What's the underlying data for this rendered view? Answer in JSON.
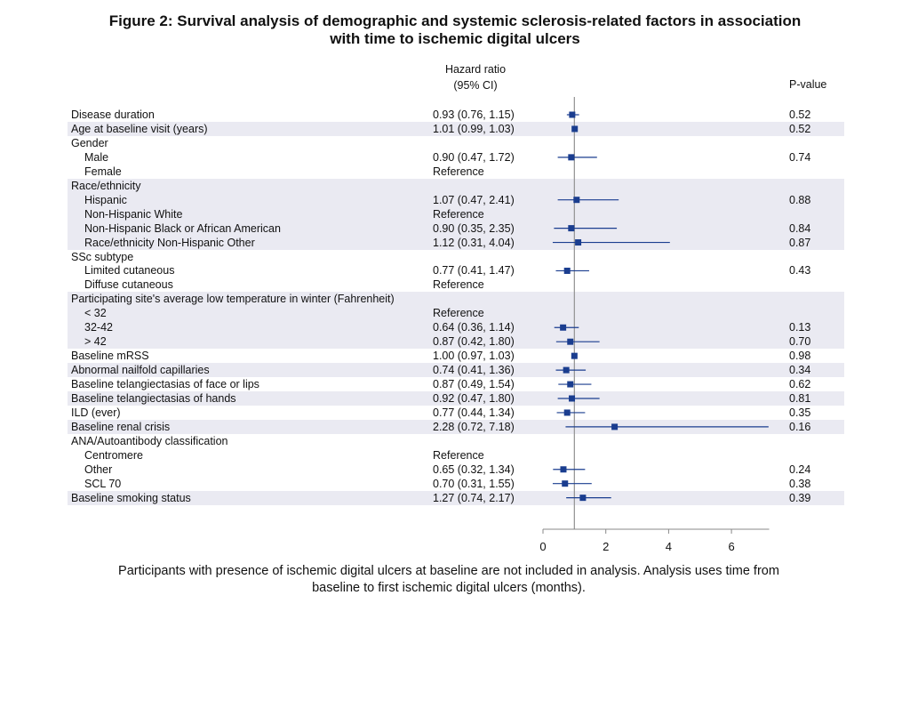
{
  "title": {
    "line1": "Figure 2: Survival analysis of demographic and systemic sclerosis-related factors in association",
    "line2": "with time to ischemic digital ulcers"
  },
  "headers": {
    "hazard_ratio_line1": "Hazard ratio",
    "hazard_ratio_line2": "(95% CI)",
    "p_value": "P-value"
  },
  "footnote": {
    "line1": "Participants with presence of ischemic digital ulcers at baseline are not included in analysis. Analysis uses time from",
    "line2": "baseline to first ischemic digital ulcers (months)."
  },
  "colors": {
    "marker": "#1a3d8f",
    "band": "#eaeaf2",
    "axis": "#888888",
    "refline": "#999999"
  },
  "chart_data": {
    "type": "forest",
    "xlim": [
      0,
      7.2
    ],
    "x_ticks": [
      0,
      2,
      4,
      6
    ],
    "reference_line": 1,
    "rows": [
      {
        "label": "Disease duration",
        "indent": false,
        "hr_text": "0.93 (0.76, 1.15)",
        "p": "0.52",
        "est": 0.93,
        "lo": 0.76,
        "hi": 1.15
      },
      {
        "label": "Age at baseline visit (years)",
        "indent": false,
        "hr_text": "1.01 (0.99, 1.03)",
        "p": "0.52",
        "est": 1.01,
        "lo": 0.99,
        "hi": 1.03
      },
      {
        "label": "Gender",
        "indent": false,
        "hr_text": "",
        "p": ""
      },
      {
        "label": "Male",
        "indent": true,
        "hr_text": "0.90 (0.47, 1.72)",
        "p": "0.74",
        "est": 0.9,
        "lo": 0.47,
        "hi": 1.72
      },
      {
        "label": "Female",
        "indent": true,
        "hr_text": "Reference",
        "p": ""
      },
      {
        "label": "Race/ethnicity",
        "indent": false,
        "hr_text": "",
        "p": ""
      },
      {
        "label": "Hispanic",
        "indent": true,
        "hr_text": "1.07 (0.47, 2.41)",
        "p": "0.88",
        "est": 1.07,
        "lo": 0.47,
        "hi": 2.41
      },
      {
        "label": "Non-Hispanic White",
        "indent": true,
        "hr_text": "Reference",
        "p": ""
      },
      {
        "label": "Non-Hispanic Black or African American",
        "indent": true,
        "hr_text": "0.90 (0.35, 2.35)",
        "p": "0.84",
        "est": 0.9,
        "lo": 0.35,
        "hi": 2.35
      },
      {
        "label": "Race/ethnicity Non-Hispanic Other",
        "indent": true,
        "hr_text": "1.12 (0.31, 4.04)",
        "p": "0.87",
        "est": 1.12,
        "lo": 0.31,
        "hi": 4.04
      },
      {
        "label": "SSc subtype",
        "indent": false,
        "hr_text": "",
        "p": ""
      },
      {
        "label": "Limited cutaneous",
        "indent": true,
        "hr_text": "0.77 (0.41, 1.47)",
        "p": "0.43",
        "est": 0.77,
        "lo": 0.41,
        "hi": 1.47
      },
      {
        "label": "Diffuse cutaneous",
        "indent": true,
        "hr_text": "Reference",
        "p": ""
      },
      {
        "label": "Participating site's average low temperature in winter (Fahrenheit)",
        "indent": false,
        "hr_text": "",
        "p": ""
      },
      {
        "label": "< 32",
        "indent": true,
        "hr_text": "Reference",
        "p": ""
      },
      {
        "label": "32-42",
        "indent": true,
        "hr_text": "0.64 (0.36, 1.14)",
        "p": "0.13",
        "est": 0.64,
        "lo": 0.36,
        "hi": 1.14
      },
      {
        "label": "> 42",
        "indent": true,
        "hr_text": "0.87 (0.42, 1.80)",
        "p": "0.70",
        "est": 0.87,
        "lo": 0.42,
        "hi": 1.8
      },
      {
        "label": "Baseline mRSS",
        "indent": false,
        "hr_text": "1.00 (0.97, 1.03)",
        "p": "0.98",
        "est": 1.0,
        "lo": 0.97,
        "hi": 1.03
      },
      {
        "label": "Abnormal nailfold capillaries",
        "indent": false,
        "hr_text": "0.74 (0.41, 1.36)",
        "p": "0.34",
        "est": 0.74,
        "lo": 0.41,
        "hi": 1.36
      },
      {
        "label": "Baseline telangiectasias of face or lips",
        "indent": false,
        "hr_text": "0.87 (0.49, 1.54)",
        "p": "0.62",
        "est": 0.87,
        "lo": 0.49,
        "hi": 1.54
      },
      {
        "label": "Baseline telangiectasias of hands",
        "indent": false,
        "hr_text": "0.92 (0.47, 1.80)",
        "p": "0.81",
        "est": 0.92,
        "lo": 0.47,
        "hi": 1.8
      },
      {
        "label": "ILD (ever)",
        "indent": false,
        "hr_text": "0.77 (0.44, 1.34)",
        "p": "0.35",
        "est": 0.77,
        "lo": 0.44,
        "hi": 1.34
      },
      {
        "label": "Baseline renal crisis",
        "indent": false,
        "hr_text": "2.28 (0.72, 7.18)",
        "p": "0.16",
        "est": 2.28,
        "lo": 0.72,
        "hi": 7.18
      },
      {
        "label": "ANA/Autoantibody classification",
        "indent": false,
        "hr_text": "",
        "p": ""
      },
      {
        "label": "Centromere",
        "indent": true,
        "hr_text": "Reference",
        "p": ""
      },
      {
        "label": "Other",
        "indent": true,
        "hr_text": "0.65 (0.32, 1.34)",
        "p": "0.24",
        "est": 0.65,
        "lo": 0.32,
        "hi": 1.34
      },
      {
        "label": "SCL 70",
        "indent": true,
        "hr_text": "0.70 (0.31, 1.55)",
        "p": "0.38",
        "est": 0.7,
        "lo": 0.31,
        "hi": 1.55
      },
      {
        "label": "Baseline smoking status",
        "indent": false,
        "hr_text": "1.27 (0.74, 2.17)",
        "p": "0.39",
        "est": 1.27,
        "lo": 0.74,
        "hi": 2.17
      }
    ],
    "bands": [
      {
        "start": 1,
        "end": 1
      },
      {
        "start": 5,
        "end": 9
      },
      {
        "start": 13,
        "end": 16
      },
      {
        "start": 18,
        "end": 18
      },
      {
        "start": 20,
        "end": 20
      },
      {
        "start": 22,
        "end": 22
      },
      {
        "start": 27,
        "end": 27
      }
    ]
  }
}
